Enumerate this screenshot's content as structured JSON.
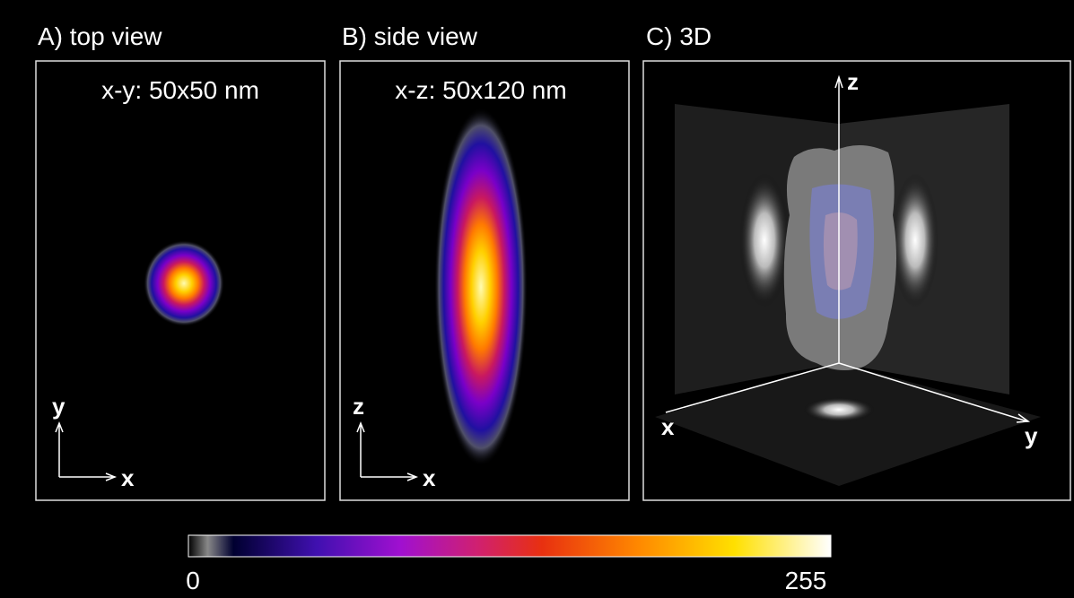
{
  "panels": [
    {
      "label": "A) top view",
      "subtitle": "x-y: 50x50 nm",
      "axes": [
        "y",
        "x"
      ]
    },
    {
      "label": "B) side view",
      "subtitle": "x-z: 50x120 nm",
      "axes": [
        "z",
        "x"
      ]
    },
    {
      "label": "C) 3D",
      "axes": [
        "z",
        "x",
        "y"
      ]
    }
  ],
  "colorbar": {
    "min": 0,
    "max": 255
  }
}
